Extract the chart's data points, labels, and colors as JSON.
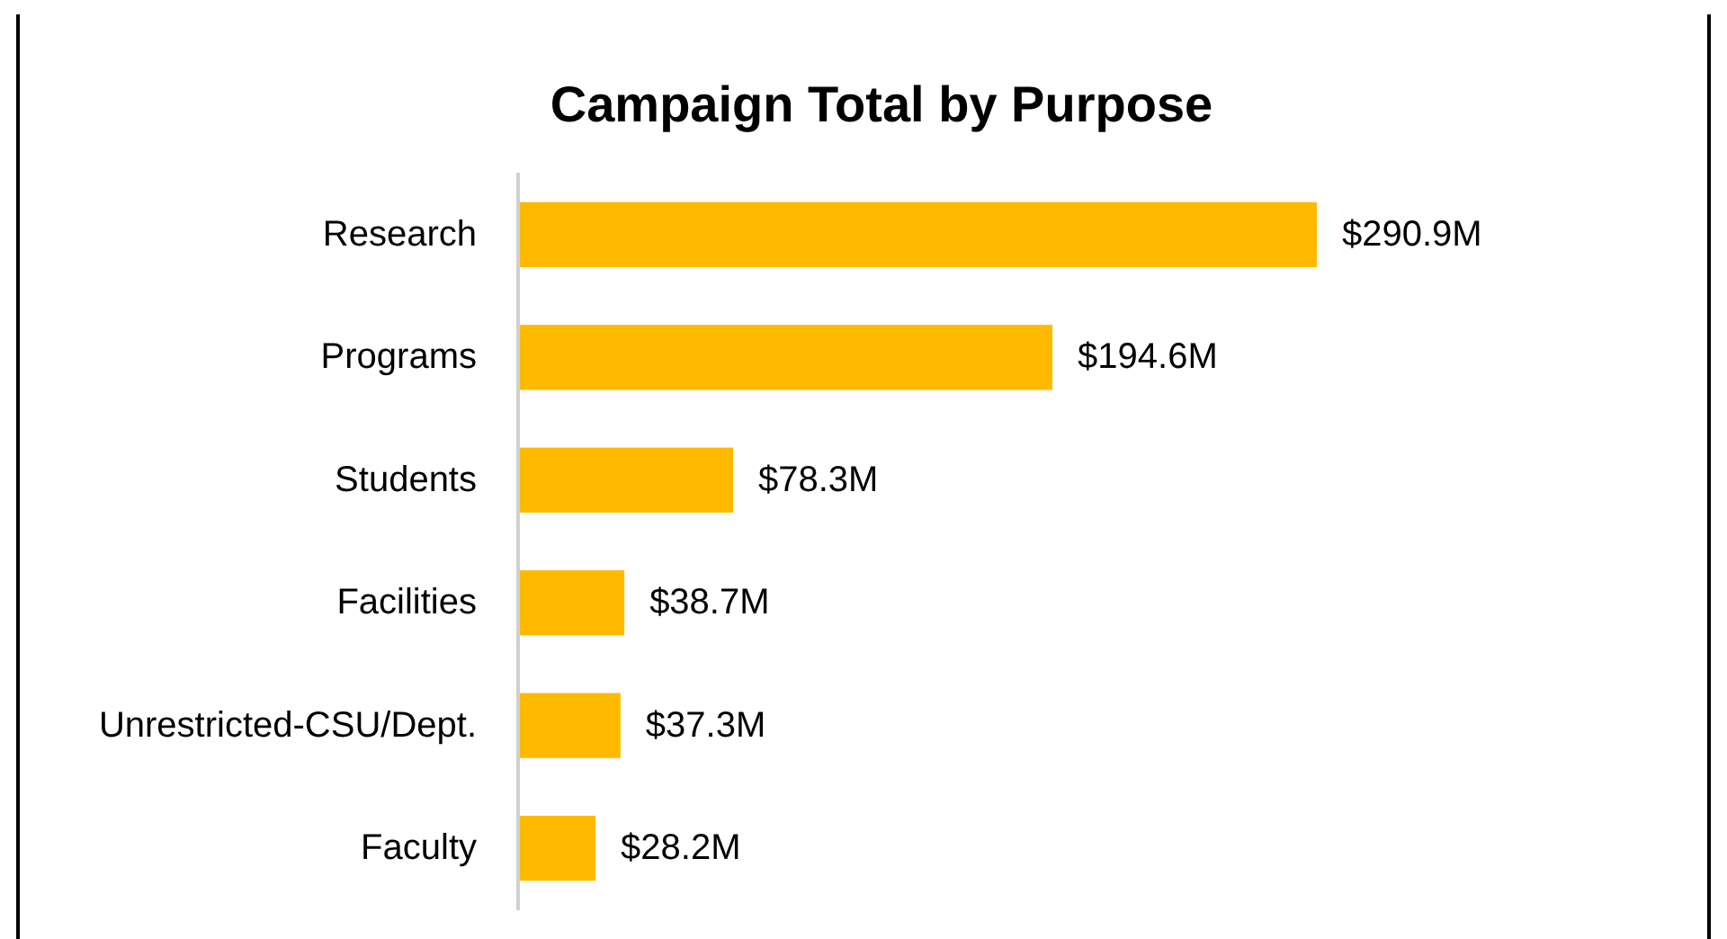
{
  "chart_data": {
    "type": "bar",
    "orientation": "horizontal",
    "title": "Campaign Total by Purpose",
    "categories": [
      "Research",
      "Programs",
      "Students",
      "Facilities",
      "Unrestricted-CSU/Dept.",
      "Faculty"
    ],
    "values": [
      290.9,
      194.6,
      78.3,
      38.7,
      37.3,
      28.2
    ],
    "value_labels": [
      "$290.9M",
      "$194.6M",
      "$78.3M",
      "$38.7M",
      "$37.3M",
      "$28.2M"
    ],
    "color": "#ffba00"
  }
}
